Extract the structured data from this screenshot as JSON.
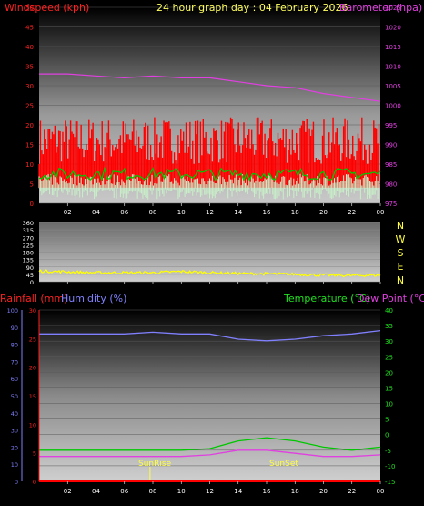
{
  "chart_data": [
    {
      "type": "line",
      "title": "24 hour graph day : 04 February 2026",
      "ylabel_left": "Windspeed (kph)",
      "ylabel_right": "Barometer (hpa)",
      "x_ticks": [
        "02",
        "04",
        "06",
        "08",
        "10",
        "12",
        "14",
        "16",
        "18",
        "20",
        "22",
        "00"
      ],
      "ylim_left": [
        0,
        50
      ],
      "yticks_left": [
        "0",
        "5",
        "10",
        "15",
        "20",
        "25",
        "30",
        "35",
        "40",
        "45",
        "50"
      ],
      "ylim_right": [
        975,
        1025
      ],
      "yticks_right": [
        "975",
        "980",
        "985",
        "990",
        "995",
        "1000",
        "1005",
        "1010",
        "1015",
        "1020",
        "1025"
      ],
      "colors": {
        "gust": "#ff0000",
        "average": "#00c800",
        "direction_avg": "#c8f0c8",
        "barometer": "#e040e0"
      },
      "series": [
        {
          "name": "Barometer (hpa)",
          "axis": "right",
          "x": [
            0,
            2,
            4,
            6,
            8,
            10,
            12,
            14,
            16,
            18,
            20,
            22,
            24
          ],
          "values": [
            1008,
            1008,
            1007.5,
            1007,
            1007.5,
            1007,
            1007,
            1006,
            1005,
            1004.5,
            1003,
            1002,
            1001
          ]
        }
      ],
      "gust_range": [
        10,
        22
      ],
      "average_range": [
        6,
        9
      ],
      "minimum_range": [
        1,
        4
      ]
    },
    {
      "type": "line",
      "x_ticks": [
        "02",
        "04",
        "06",
        "08",
        "10",
        "12",
        "14",
        "16",
        "18",
        "20",
        "22",
        "00"
      ],
      "ylim": [
        0,
        360
      ],
      "yticks": [
        "0",
        "45",
        "90",
        "135",
        "180",
        "225",
        "270",
        "315",
        "360"
      ],
      "compass": [
        "N",
        "W",
        "S",
        "E",
        "N"
      ],
      "colors": {
        "direction": "#ffff00"
      },
      "series": [
        {
          "x": [
            0,
            2,
            4,
            6,
            8,
            10,
            12,
            14,
            16,
            18,
            20,
            22,
            24
          ],
          "values": [
            65,
            60,
            55,
            55,
            55,
            62,
            55,
            50,
            48,
            45,
            40,
            38,
            40
          ]
        }
      ]
    },
    {
      "type": "line",
      "ylabel_left": "Rainfall (mm)",
      "ylabel_left2": "Humidity (%)",
      "ylabel_right": "Temperature (°C)",
      "ylabel_right2": "Dew Point (°C)",
      "x_ticks": [
        "02",
        "04",
        "06",
        "08",
        "10",
        "12",
        "14",
        "16",
        "18",
        "20",
        "22",
        "00"
      ],
      "ylim_humidity": [
        0,
        100
      ],
      "yticks_humidity": [
        "0",
        "10",
        "20",
        "30",
        "40",
        "50",
        "60",
        "70",
        "80",
        "90",
        "100"
      ],
      "ylim_rain": [
        0,
        30
      ],
      "yticks_rain": [
        "0",
        "5",
        "10",
        "15",
        "20",
        "25",
        "30"
      ],
      "ylim_temp": [
        -15,
        40
      ],
      "yticks_temp": [
        "-15",
        "-10",
        "-5",
        "0",
        "5",
        "10",
        "15",
        "20",
        "25",
        "30",
        "35",
        "40"
      ],
      "annotations": {
        "sunrise": "SunRise",
        "sunset": "SunSet",
        "sunrise_hour": 7.8,
        "sunset_hour": 16.8
      },
      "colors": {
        "humidity": "#8080ff",
        "temperature": "#00c800",
        "dewpoint": "#e040e0",
        "rain": "#ff0000"
      },
      "series": [
        {
          "name": "Humidity (%)",
          "x": [
            0,
            2,
            4,
            6,
            8,
            10,
            12,
            14,
            16,
            18,
            20,
            22,
            24
          ],
          "values": [
            86,
            86,
            86,
            86,
            87,
            86,
            86,
            83,
            82,
            83,
            85,
            86,
            88
          ]
        },
        {
          "name": "Temperature (°C)",
          "x": [
            0,
            2,
            4,
            6,
            8,
            10,
            12,
            14,
            16,
            18,
            20,
            22,
            24
          ],
          "values": [
            -5,
            -5,
            -5,
            -5,
            -5,
            -5,
            -4.5,
            -2,
            -1,
            -2,
            -4,
            -5,
            -4
          ]
        },
        {
          "name": "Dew Point (°C)",
          "x": [
            0,
            2,
            4,
            6,
            8,
            10,
            12,
            14,
            16,
            18,
            20,
            22,
            24
          ],
          "values": [
            -7,
            -7,
            -7,
            -7,
            -7,
            -7,
            -6.5,
            -5,
            -5,
            -6,
            -7,
            -7,
            -6.5
          ]
        },
        {
          "name": "Rainfall (mm)",
          "x": [
            0,
            24
          ],
          "values": [
            0,
            0
          ]
        }
      ]
    }
  ]
}
